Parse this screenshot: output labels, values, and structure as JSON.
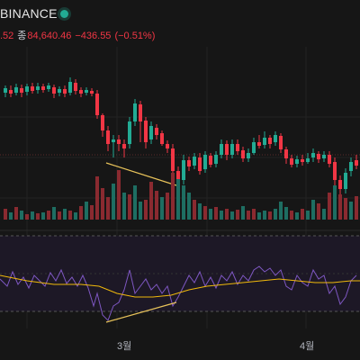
{
  "header": {
    "title": "BINANCE",
    "ohlc_prefix": ".52",
    "close_label": "종",
    "close_value": "84,640.46",
    "change": "−436.55",
    "change_pct": "(−0.51%)",
    "status_color": "#22ab94"
  },
  "colors": {
    "up": "#22ab94",
    "down": "#f23645",
    "rsi_line": "#7e57c2",
    "rsi_ma": "#f0b90b",
    "divergence": "#e8c35a",
    "rsi_band": "#1d1826"
  },
  "x_axis": {
    "labels": [
      "3월",
      "4월"
    ]
  }
}
